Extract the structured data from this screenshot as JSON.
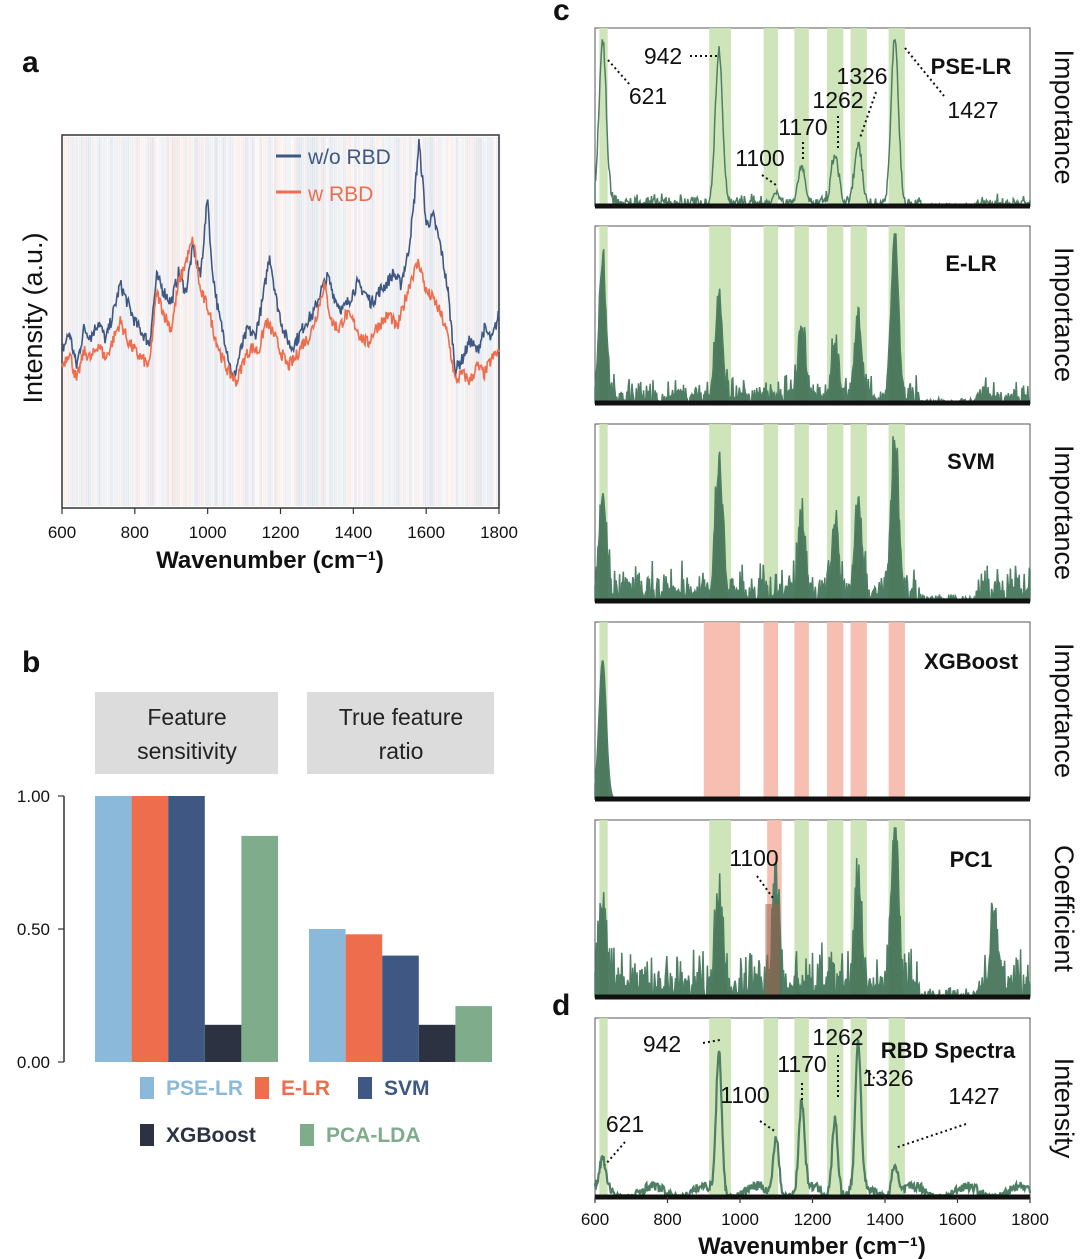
{
  "panel_labels": {
    "a": "a",
    "b": "b",
    "c": "c",
    "d": "d"
  },
  "colors": {
    "navy": "#3e5883",
    "orange": "#ee6d4d",
    "lightblue": "#8ab9d9",
    "dark": "#2c3242",
    "green": "#7fac8a",
    "band_green": "#c9e2b3",
    "band_red": "#f5b8a9",
    "line_green": "#4e7e64"
  },
  "chart_data": [
    {
      "id": "a",
      "type": "line",
      "xlabel": "Wavenumber (cm⁻¹)",
      "ylabel": "Intensity (a.u.)",
      "xlim": [
        600,
        1800
      ],
      "xticks": [
        "600",
        "800",
        "1000",
        "1200",
        "1400",
        "1600",
        "1800"
      ],
      "grid": false,
      "legend_position": "top-center",
      "series": [
        {
          "name": "w/o RBD",
          "color": "#3e5883",
          "points": [
            [
              600,
              0.42
            ],
            [
              620,
              0.47
            ],
            [
              640,
              0.38
            ],
            [
              660,
              0.48
            ],
            [
              680,
              0.46
            ],
            [
              700,
              0.5
            ],
            [
              720,
              0.45
            ],
            [
              740,
              0.52
            ],
            [
              760,
              0.6
            ],
            [
              780,
              0.55
            ],
            [
              800,
              0.5
            ],
            [
              820,
              0.47
            ],
            [
              840,
              0.44
            ],
            [
              860,
              0.62
            ],
            [
              880,
              0.58
            ],
            [
              900,
              0.55
            ],
            [
              920,
              0.63
            ],
            [
              940,
              0.58
            ],
            [
              960,
              0.7
            ],
            [
              980,
              0.62
            ],
            [
              995,
              0.78
            ],
            [
              1000,
              0.84
            ],
            [
              1010,
              0.66
            ],
            [
              1030,
              0.52
            ],
            [
              1050,
              0.44
            ],
            [
              1070,
              0.34
            ],
            [
              1090,
              0.42
            ],
            [
              1110,
              0.48
            ],
            [
              1130,
              0.46
            ],
            [
              1150,
              0.55
            ],
            [
              1170,
              0.68
            ],
            [
              1190,
              0.55
            ],
            [
              1210,
              0.47
            ],
            [
              1230,
              0.43
            ],
            [
              1250,
              0.46
            ],
            [
              1270,
              0.5
            ],
            [
              1290,
              0.52
            ],
            [
              1310,
              0.58
            ],
            [
              1330,
              0.62
            ],
            [
              1350,
              0.56
            ],
            [
              1370,
              0.53
            ],
            [
              1390,
              0.56
            ],
            [
              1410,
              0.6
            ],
            [
              1430,
              0.58
            ],
            [
              1450,
              0.55
            ],
            [
              1470,
              0.58
            ],
            [
              1490,
              0.6
            ],
            [
              1510,
              0.63
            ],
            [
              1530,
              0.6
            ],
            [
              1550,
              0.68
            ],
            [
              1565,
              0.8
            ],
            [
              1580,
              0.98
            ],
            [
              1590,
              0.88
            ],
            [
              1600,
              0.76
            ],
            [
              1620,
              0.78
            ],
            [
              1640,
              0.7
            ],
            [
              1660,
              0.58
            ],
            [
              1680,
              0.37
            ],
            [
              1700,
              0.4
            ],
            [
              1720,
              0.45
            ],
            [
              1740,
              0.42
            ],
            [
              1760,
              0.48
            ],
            [
              1780,
              0.45
            ],
            [
              1800,
              0.52
            ]
          ]
        },
        {
          "name": "w RBD",
          "color": "#ee6d4d",
          "points": [
            [
              600,
              0.38
            ],
            [
              620,
              0.42
            ],
            [
              640,
              0.34
            ],
            [
              660,
              0.42
            ],
            [
              680,
              0.4
            ],
            [
              700,
              0.44
            ],
            [
              720,
              0.4
            ],
            [
              740,
              0.45
            ],
            [
              760,
              0.5
            ],
            [
              780,
              0.45
            ],
            [
              800,
              0.42
            ],
            [
              820,
              0.4
            ],
            [
              840,
              0.38
            ],
            [
              860,
              0.58
            ],
            [
              880,
              0.52
            ],
            [
              900,
              0.48
            ],
            [
              920,
              0.6
            ],
            [
              940,
              0.66
            ],
            [
              960,
              0.72
            ],
            [
              980,
              0.58
            ],
            [
              1000,
              0.54
            ],
            [
              1020,
              0.46
            ],
            [
              1040,
              0.4
            ],
            [
              1060,
              0.36
            ],
            [
              1080,
              0.34
            ],
            [
              1100,
              0.4
            ],
            [
              1120,
              0.43
            ],
            [
              1140,
              0.42
            ],
            [
              1160,
              0.5
            ],
            [
              1180,
              0.47
            ],
            [
              1200,
              0.42
            ],
            [
              1220,
              0.38
            ],
            [
              1240,
              0.4
            ],
            [
              1260,
              0.44
            ],
            [
              1280,
              0.46
            ],
            [
              1300,
              0.52
            ],
            [
              1320,
              0.6
            ],
            [
              1340,
              0.5
            ],
            [
              1360,
              0.48
            ],
            [
              1380,
              0.52
            ],
            [
              1400,
              0.5
            ],
            [
              1420,
              0.46
            ],
            [
              1440,
              0.44
            ],
            [
              1460,
              0.48
            ],
            [
              1480,
              0.5
            ],
            [
              1500,
              0.52
            ],
            [
              1520,
              0.48
            ],
            [
              1540,
              0.55
            ],
            [
              1560,
              0.62
            ],
            [
              1580,
              0.66
            ],
            [
              1600,
              0.58
            ],
            [
              1620,
              0.56
            ],
            [
              1640,
              0.52
            ],
            [
              1660,
              0.46
            ],
            [
              1680,
              0.34
            ],
            [
              1700,
              0.36
            ],
            [
              1720,
              0.34
            ],
            [
              1740,
              0.38
            ],
            [
              1760,
              0.36
            ],
            [
              1780,
              0.4
            ],
            [
              1800,
              0.42
            ]
          ]
        }
      ]
    },
    {
      "id": "b",
      "type": "bar",
      "group_titles": [
        [
          "Feature",
          "sensitivity"
        ],
        [
          "True feature",
          "ratio"
        ]
      ],
      "yticks": [
        "1.00",
        "0.50",
        "0.00"
      ],
      "ylim": [
        0,
        1
      ],
      "series": [
        {
          "name": "PSE-LR",
          "color": "#8ab9d9",
          "values": [
            1.0,
            0.5
          ]
        },
        {
          "name": "E-LR",
          "color": "#ee6d4d",
          "values": [
            1.0,
            0.48
          ]
        },
        {
          "name": "SVM",
          "color": "#3e5883",
          "values": [
            1.0,
            0.4
          ]
        },
        {
          "name": "XGBoost",
          "color": "#2c3242",
          "values": [
            0.14,
            0.14
          ]
        },
        {
          "name": "PCA-LDA",
          "color": "#7fac8a",
          "values": [
            0.85,
            0.21
          ]
        }
      ]
    },
    {
      "id": "c",
      "type": "area",
      "xlim": [
        600,
        1800
      ],
      "panels": [
        {
          "model": "PSE-LR",
          "ylabel": "Importance",
          "peaks": [
            [
              621,
              0.95
            ],
            [
              942,
              0.9
            ],
            [
              1100,
              0.06
            ],
            [
              1170,
              0.22
            ],
            [
              1262,
              0.28
            ],
            [
              1326,
              0.34
            ],
            [
              1427,
              0.98
            ]
          ],
          "annotations": [
            "621",
            "942",
            "1100",
            "1170",
            "1262",
            "1326",
            "1427"
          ],
          "bands": [
            [
              612,
              635,
              "green"
            ],
            [
              915,
              975,
              "green"
            ],
            [
              1065,
              1105,
              "green"
            ],
            [
              1150,
              1190,
              "green"
            ],
            [
              1240,
              1285,
              "green"
            ],
            [
              1305,
              1350,
              "green"
            ],
            [
              1410,
              1455,
              "green"
            ]
          ]
        },
        {
          "model": "E-LR",
          "ylabel": "Importance",
          "peaks": [
            [
              621,
              0.78
            ],
            [
              942,
              0.62
            ],
            [
              1170,
              0.4
            ],
            [
              1262,
              0.32
            ],
            [
              1326,
              0.48
            ],
            [
              1427,
              0.98
            ]
          ],
          "bands": [
            [
              612,
              635,
              "green"
            ],
            [
              915,
              975,
              "green"
            ],
            [
              1065,
              1105,
              "green"
            ],
            [
              1150,
              1190,
              "green"
            ],
            [
              1240,
              1285,
              "green"
            ],
            [
              1305,
              1350,
              "green"
            ],
            [
              1410,
              1455,
              "green"
            ]
          ]
        },
        {
          "model": "SVM",
          "ylabel": "Importance",
          "peaks": [
            [
              621,
              0.6
            ],
            [
              942,
              0.75
            ],
            [
              1170,
              0.45
            ],
            [
              1262,
              0.38
            ],
            [
              1326,
              0.55
            ],
            [
              1427,
              0.9
            ]
          ],
          "bands": [
            [
              612,
              635,
              "green"
            ],
            [
              915,
              975,
              "green"
            ],
            [
              1065,
              1105,
              "green"
            ],
            [
              1150,
              1190,
              "green"
            ],
            [
              1240,
              1285,
              "green"
            ],
            [
              1305,
              1350,
              "green"
            ],
            [
              1410,
              1455,
              "green"
            ]
          ]
        },
        {
          "model": "XGBoost",
          "ylabel": "Importance",
          "peaks": [
            [
              621,
              0.82
            ]
          ],
          "bands": [
            [
              612,
              635,
              "green"
            ],
            [
              900,
              1000,
              "red"
            ],
            [
              1065,
              1105,
              "red"
            ],
            [
              1150,
              1190,
              "red"
            ],
            [
              1240,
              1285,
              "red"
            ],
            [
              1305,
              1350,
              "red"
            ],
            [
              1410,
              1455,
              "red"
            ]
          ]
        },
        {
          "model": "PC1",
          "ylabel": "Coefficient",
          "peaks": [
            [
              621,
              0.5
            ],
            [
              942,
              0.55
            ],
            [
              1100,
              0.58
            ],
            [
              1326,
              0.6
            ],
            [
              1427,
              0.95
            ],
            [
              1700,
              0.42
            ]
          ],
          "annotations": [
            "1100"
          ],
          "bands": [
            [
              612,
              635,
              "green"
            ],
            [
              915,
              975,
              "green"
            ],
            [
              1075,
              1115,
              "red"
            ],
            [
              1150,
              1190,
              "green"
            ],
            [
              1240,
              1285,
              "green"
            ],
            [
              1305,
              1350,
              "green"
            ],
            [
              1410,
              1455,
              "green"
            ]
          ]
        }
      ]
    },
    {
      "id": "d",
      "type": "line",
      "title": "RBD Spectra",
      "ylabel": "Intensity",
      "xlabel": "Wavenumber (cm⁻¹)",
      "xlim": [
        600,
        1800
      ],
      "xticks": [
        "600",
        "800",
        "1000",
        "1200",
        "1400",
        "1600",
        "1800"
      ],
      "peaks": [
        [
          621,
          0.18
        ],
        [
          942,
          0.9
        ],
        [
          1100,
          0.38
        ],
        [
          1170,
          0.55
        ],
        [
          1262,
          0.5
        ],
        [
          1326,
          0.92
        ],
        [
          1427,
          0.22
        ]
      ],
      "annotations": [
        "621",
        "942",
        "1100",
        "1170",
        "1262",
        "1326",
        "1427"
      ],
      "bands": [
        [
          612,
          635
        ],
        [
          915,
          975
        ],
        [
          1065,
          1105
        ],
        [
          1150,
          1190
        ],
        [
          1240,
          1285
        ],
        [
          1305,
          1350
        ],
        [
          1410,
          1455
        ]
      ]
    }
  ]
}
